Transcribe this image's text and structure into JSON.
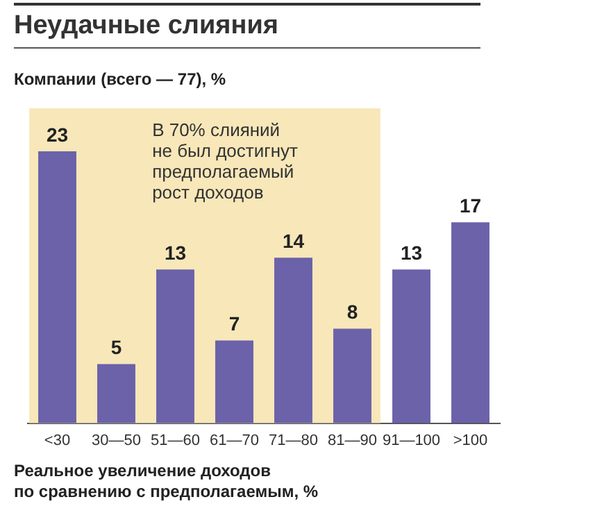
{
  "chart_data": {
    "type": "bar",
    "title": "Неудачные слияния",
    "ylabel": "Компании (всего — 77), %",
    "xlabel": "Реальное увеличение доходов\nпо сравнению с предполагаемым, %",
    "categories": [
      "<30",
      "30—50",
      "51—60",
      "61—70",
      "71—80",
      "81—90",
      "91—100",
      ">100"
    ],
    "values": [
      23,
      5,
      13,
      7,
      14,
      8,
      13,
      17
    ],
    "color": "#6b62aa",
    "tick_labels": "x",
    "data_labels": true,
    "grid": false,
    "legend": false,
    "bands": [
      {
        "axis": "x",
        "from": "<30",
        "to": "81—90",
        "label": "В 70% слияний\nне был достигнут\nпредполагаемый\nрост доходов",
        "color": "#f8e7b9"
      }
    ]
  }
}
